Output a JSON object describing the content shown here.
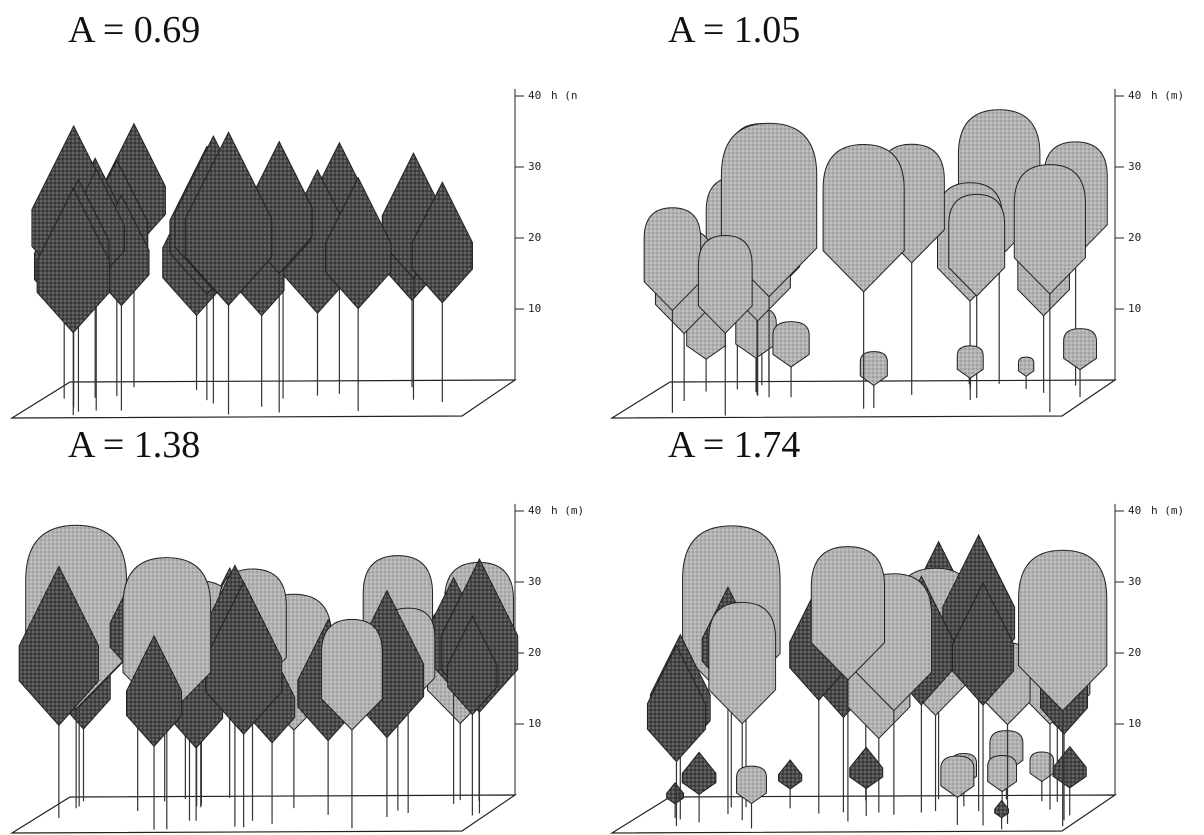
{
  "panels": [
    {
      "title": "A = 0.69",
      "ticks": [
        10,
        20,
        30,
        40
      ],
      "axis_label": "h (n"
    },
    {
      "title": "A = 1.05",
      "ticks": [
        10,
        20,
        30,
        40
      ],
      "axis_label": "h (m)"
    },
    {
      "title": "A = 1.38",
      "ticks": [
        10,
        20,
        30,
        40
      ],
      "axis_label": "h (m)"
    },
    {
      "title": "A = 1.74",
      "ticks": [
        10,
        20,
        30,
        40
      ],
      "axis_label": "h (m)"
    }
  ]
}
